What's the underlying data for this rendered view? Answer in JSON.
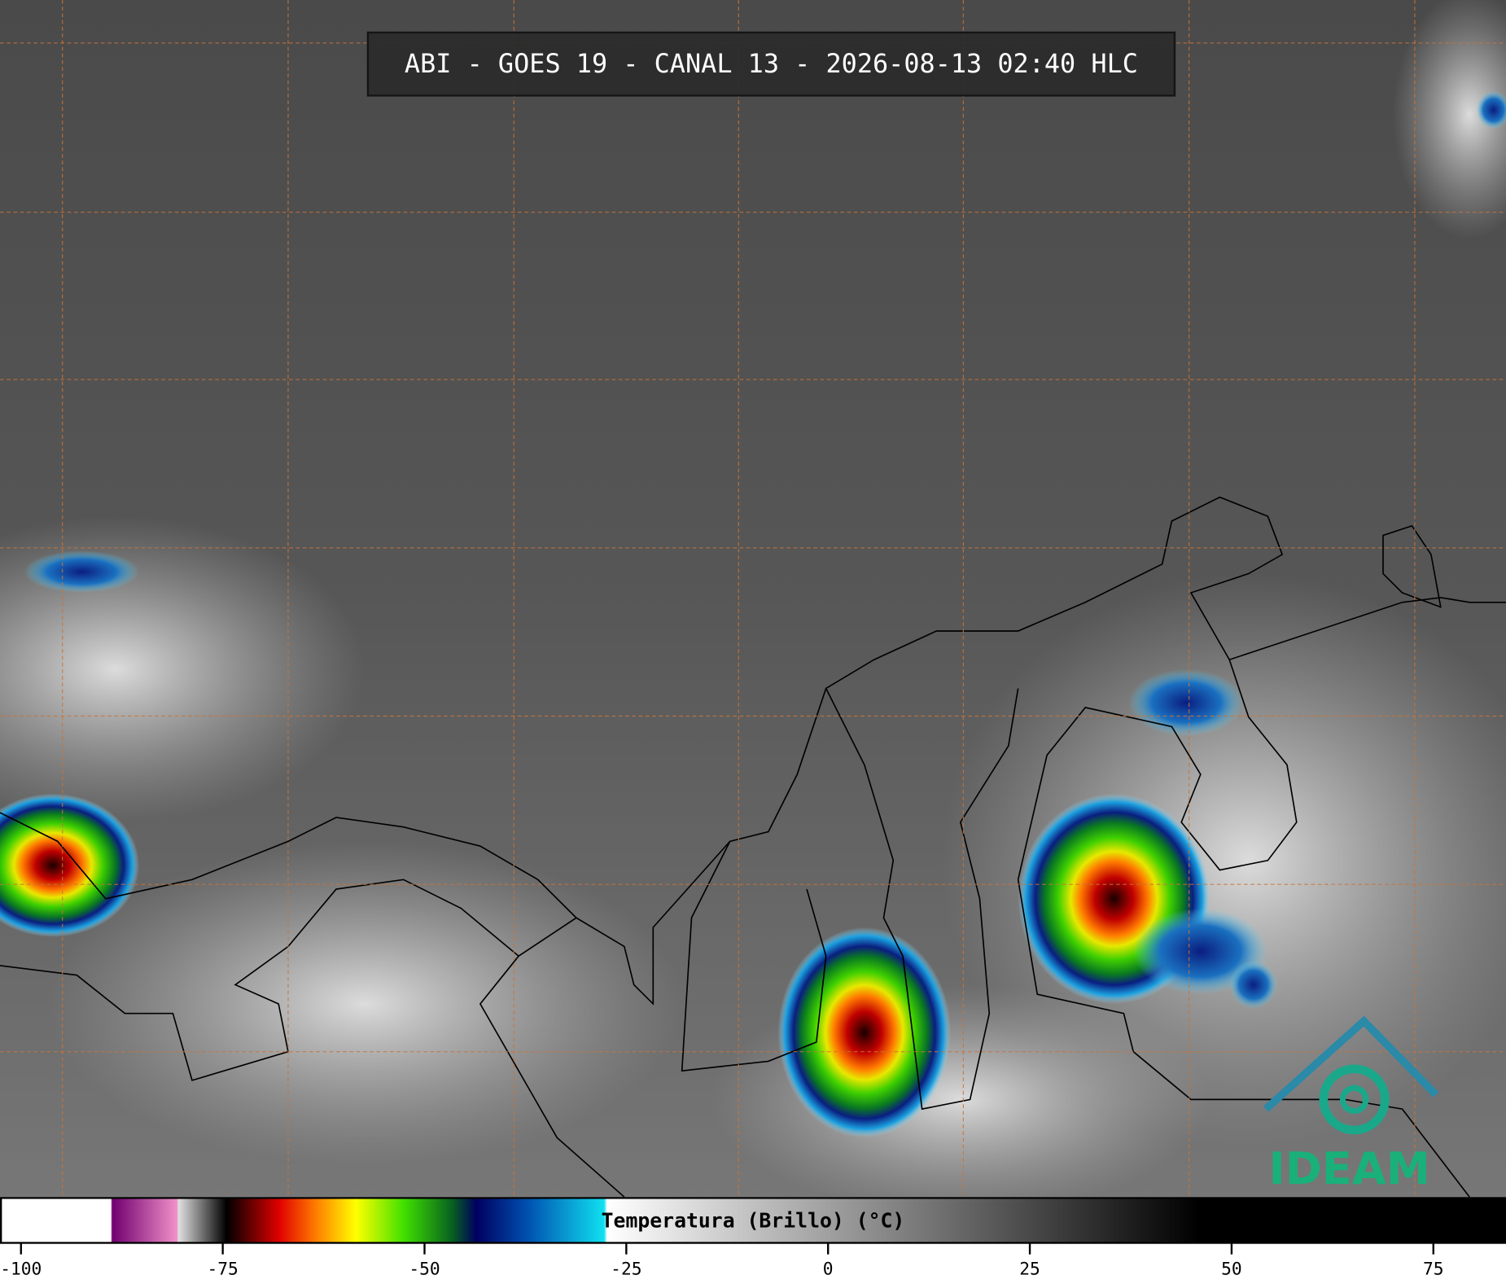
{
  "header": {
    "title": "ABI - GOES 19 - CANAL 13 - 2026-08-13 02:40 HLC"
  },
  "colorbar": {
    "label": "Temperatura (Brillo) (°C)",
    "xlim": [
      -102.6,
      84.0
    ],
    "ticks": [
      -100,
      -75,
      -50,
      -25,
      0,
      25,
      50,
      75
    ]
  },
  "logo": {
    "text": "IDEAM"
  }
}
